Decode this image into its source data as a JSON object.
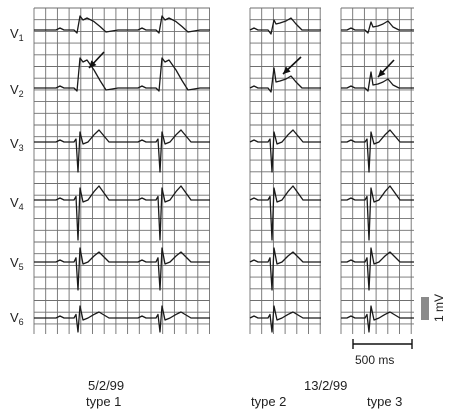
{
  "leads": [
    {
      "name": "V",
      "sub": "1"
    },
    {
      "name": "V",
      "sub": "2"
    },
    {
      "name": "V",
      "sub": "3"
    },
    {
      "name": "V",
      "sub": "4"
    },
    {
      "name": "V",
      "sub": "5"
    },
    {
      "name": "V",
      "sub": "6"
    }
  ],
  "panels": [
    {
      "id": "type1",
      "label": "type 1"
    },
    {
      "id": "type2",
      "label": "type 2"
    },
    {
      "id": "type3",
      "label": "type 3"
    }
  ],
  "dates": {
    "first": "5/2/99",
    "second": "13/2/99"
  },
  "scale": {
    "time": "500 ms",
    "voltage": "1 mV"
  },
  "colors": {
    "grid": "#6f6f6f",
    "trace": "#1a1a1a",
    "marker": "#111111"
  }
}
